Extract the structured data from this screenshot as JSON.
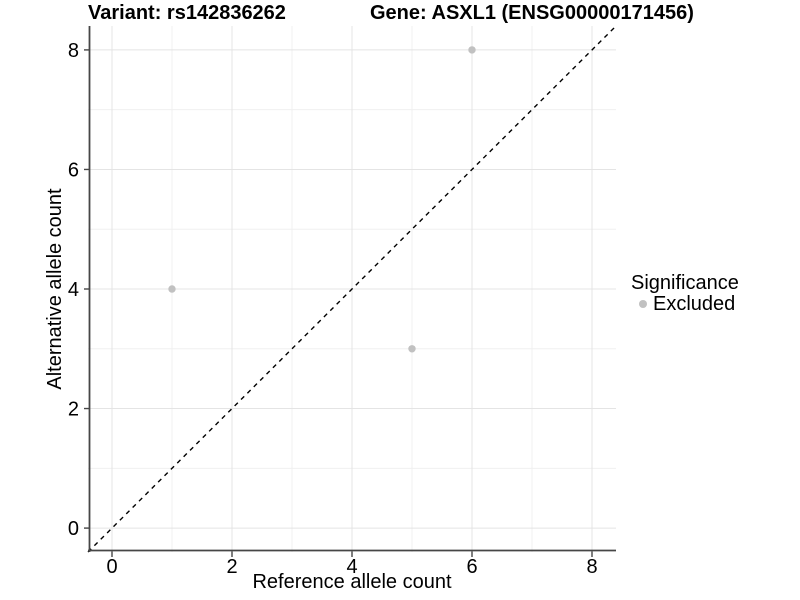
{
  "titles": {
    "variant": "Variant: rs142836262",
    "gene": "Gene: ASXL1 (ENSG00000171456)"
  },
  "chart_data": {
    "type": "scatter",
    "xlabel": "Reference allele count",
    "ylabel": "Alternative allele count",
    "xlim": [
      -0.4,
      8.4
    ],
    "ylim": [
      -0.4,
      8.4
    ],
    "x_ticks": [
      0,
      2,
      4,
      6,
      8
    ],
    "y_ticks": [
      0,
      2,
      4,
      6,
      8
    ],
    "x_minor_ticks": [
      1,
      3,
      5,
      7
    ],
    "y_minor_ticks": [
      1,
      3,
      5,
      7
    ],
    "grid": "on",
    "reference_line": {
      "type": "identity",
      "style": "dashed",
      "color": "#000000",
      "from": [
        -0.4,
        -0.4
      ],
      "to": [
        8.4,
        8.4
      ]
    },
    "series": [
      {
        "name": "Excluded",
        "color": "#c1c1c1",
        "points": [
          {
            "x": 1,
            "y": 4
          },
          {
            "x": 5,
            "y": 3
          },
          {
            "x": 6,
            "y": 8
          }
        ]
      }
    ],
    "legend": {
      "title": "Significance",
      "position": "right",
      "items": [
        {
          "label": "Excluded",
          "color": "#c1c1c1",
          "marker": "circle"
        }
      ]
    },
    "colors": {
      "grid_major": "#e4e4e4",
      "grid_minor": "#f0f0f0",
      "axis_line": "#464646",
      "tick_mark": "#464646",
      "tick_label": "#000000"
    }
  }
}
